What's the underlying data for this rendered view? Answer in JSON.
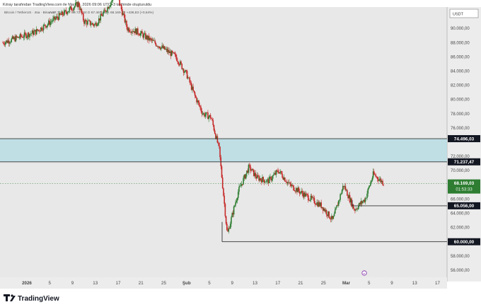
{
  "header": {
    "caption": "Kılray tarafından TradingView.com ile Mar 04, 2026 09:06 UTC+3 tarihinde oluşturuldu",
    "symbol_line": "Bitcoin / TetherUS · 4sa · Binance",
    "ohlc": "A 67.712,19  Y 68.727,84  D 67.467,60  K 68.169,03  +436,83 (+0,64%)"
  },
  "currency": "USDT",
  "colors": {
    "bg": "#e8e8e8",
    "up": "#2e7d32",
    "down": "#c62828",
    "zone": "#b7dde4",
    "line": "#555555",
    "axis_text": "#444444"
  },
  "chart_data": {
    "type": "candlestick",
    "y_range": [
      55000,
      93000
    ],
    "y_ticks": [
      {
        "value": 90000,
        "label": "90.000,00"
      },
      {
        "value": 88000,
        "label": "88.000,00"
      },
      {
        "value": 86000,
        "label": "86.000,00"
      },
      {
        "value": 84000,
        "label": "84.000,00"
      },
      {
        "value": 82000,
        "label": "82.000,00"
      },
      {
        "value": 80000,
        "label": "80.000,00"
      },
      {
        "value": 78000,
        "label": "78.000,00"
      },
      {
        "value": 76000,
        "label": "76.000,00"
      },
      {
        "value": 72000,
        "label": "72.000,00"
      },
      {
        "value": 70000,
        "label": "70.000,00"
      },
      {
        "value": 66000,
        "label": "66.000,00"
      },
      {
        "value": 64000,
        "label": "64.000,00"
      },
      {
        "value": 62000,
        "label": "62.000,00"
      },
      {
        "value": 58000,
        "label": "58.000,00"
      },
      {
        "value": 56000,
        "label": "56.000,00"
      }
    ],
    "x_ticks": [
      "2026",
      "5",
      "9",
      "13",
      "17",
      "21",
      "25",
      "Şub",
      "5",
      "9",
      "13",
      "17",
      "21",
      "25",
      "Mar",
      "5",
      "9",
      "13",
      "17"
    ],
    "zone": {
      "low": 71237.47,
      "high": 74496.03
    },
    "levels": [
      {
        "value": 74496.03,
        "label": "74.496,03"
      },
      {
        "value": 71237.47,
        "label": "71.237,47"
      },
      {
        "value": 65056.0,
        "label": "65.056,00"
      },
      {
        "value": 60000.0,
        "label": "60.000,00"
      }
    ],
    "last_price": {
      "value": 68169.03,
      "label": "68.169,03",
      "countdown": "01:53:33"
    },
    "path": [
      [
        0,
        88000
      ],
      [
        6,
        89500
      ],
      [
        11,
        92000
      ],
      [
        14,
        93500
      ],
      [
        15,
        91000
      ],
      [
        17,
        90500
      ],
      [
        19,
        92500
      ],
      [
        21,
        95000
      ],
      [
        23,
        90000
      ],
      [
        25,
        89500
      ],
      [
        27,
        88500
      ],
      [
        29,
        87500
      ],
      [
        32,
        86000
      ],
      [
        34,
        83500
      ],
      [
        35.5,
        80500
      ],
      [
        37,
        78000
      ],
      [
        38.5,
        77500
      ],
      [
        40,
        73000
      ],
      [
        41.5,
        61000
      ],
      [
        43.5,
        67000
      ],
      [
        45.5,
        70500
      ],
      [
        47,
        69000
      ],
      [
        49,
        68500
      ],
      [
        51,
        70000
      ],
      [
        53,
        68000
      ],
      [
        55,
        67000
      ],
      [
        57,
        66000
      ],
      [
        59,
        65000
      ],
      [
        61,
        63000
      ],
      [
        63,
        68000
      ],
      [
        65,
        64500
      ],
      [
        67,
        66000
      ],
      [
        68.5,
        69500
      ],
      [
        70.5,
        68200
      ]
    ]
  },
  "footer": {
    "brand": "TradingView"
  }
}
